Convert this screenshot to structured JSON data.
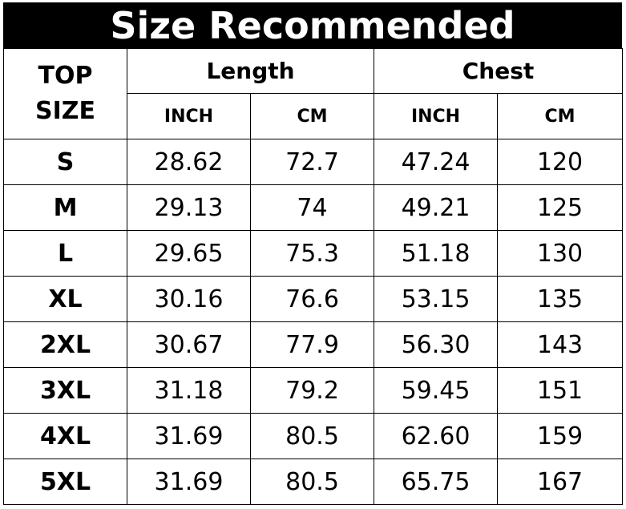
{
  "title": "Size Recommended",
  "header": {
    "top_size": [
      "TOP",
      "SIZE"
    ],
    "groups": [
      "Length",
      "Chest"
    ],
    "units": [
      "INCH",
      "CM",
      "INCH",
      "CM"
    ]
  },
  "rows": [
    {
      "size": "S",
      "length_inch": "28.62",
      "length_cm": "72.7",
      "chest_inch": "47.24",
      "chest_cm": "120"
    },
    {
      "size": "M",
      "length_inch": "29.13",
      "length_cm": "74",
      "chest_inch": "49.21",
      "chest_cm": "125"
    },
    {
      "size": "L",
      "length_inch": "29.65",
      "length_cm": "75.3",
      "chest_inch": "51.18",
      "chest_cm": "130"
    },
    {
      "size": "XL",
      "length_inch": "30.16",
      "length_cm": "76.6",
      "chest_inch": "53.15",
      "chest_cm": "135"
    },
    {
      "size": "2XL",
      "length_inch": "30.67",
      "length_cm": "77.9",
      "chest_inch": "56.30",
      "chest_cm": "143"
    },
    {
      "size": "3XL",
      "length_inch": "31.18",
      "length_cm": "79.2",
      "chest_inch": "59.45",
      "chest_cm": "151"
    },
    {
      "size": "4XL",
      "length_inch": "31.69",
      "length_cm": "80.5",
      "chest_inch": "62.60",
      "chest_cm": "159"
    },
    {
      "size": "5XL",
      "length_inch": "31.69",
      "length_cm": "80.5",
      "chest_inch": "65.75",
      "chest_cm": "167"
    }
  ]
}
